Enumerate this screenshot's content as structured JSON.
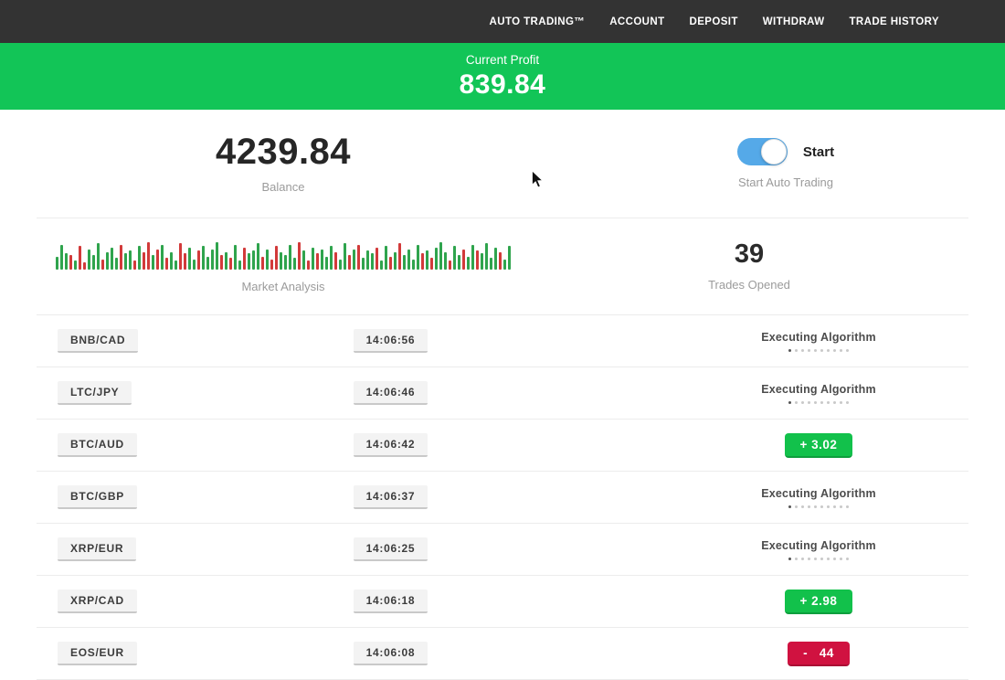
{
  "nav": {
    "items": [
      {
        "label": "AUTO TRADING™"
      },
      {
        "label": "ACCOUNT"
      },
      {
        "label": "DEPOSIT"
      },
      {
        "label": "WITHDRAW"
      },
      {
        "label": "TRADE HISTORY"
      }
    ]
  },
  "profit_banner": {
    "label": "Current Profit",
    "value": "839.84"
  },
  "stats": {
    "balance_value": "4239.84",
    "balance_label": "Balance",
    "toggle_label": "Start",
    "toggle_state": "on",
    "toggle_sublabel": "Start Auto Trading",
    "market_analysis_label": "Market Analysis",
    "trades_opened_value": "39",
    "trades_opened_label": "Trades Opened"
  },
  "colors": {
    "navbar_bg": "#333333",
    "banner_green": "#12c557",
    "badge_green": "#12c14b",
    "badge_red": "#d01240",
    "toggle_blue": "#55a9e8",
    "chart_green": "#2fa44d",
    "chart_red": "#d23a3a"
  },
  "ui": {
    "executing_dots_count": 10
  },
  "chart_data": {
    "type": "bar",
    "title": "Market Analysis",
    "xlabel": "",
    "ylabel": "",
    "legend": false,
    "axes_visible": false,
    "note": "decorative sparkline of market activity; values are relative bar heights 0-1 with color g=green up tick, r=red down tick",
    "bars": [
      [
        0.45,
        "g"
      ],
      [
        0.85,
        "g"
      ],
      [
        0.55,
        "g"
      ],
      [
        0.5,
        "r"
      ],
      [
        0.3,
        "g"
      ],
      [
        0.8,
        "r"
      ],
      [
        0.25,
        "r"
      ],
      [
        0.7,
        "g"
      ],
      [
        0.5,
        "g"
      ],
      [
        0.9,
        "g"
      ],
      [
        0.35,
        "r"
      ],
      [
        0.6,
        "g"
      ],
      [
        0.75,
        "g"
      ],
      [
        0.4,
        "g"
      ],
      [
        0.85,
        "r"
      ],
      [
        0.55,
        "g"
      ],
      [
        0.65,
        "g"
      ],
      [
        0.3,
        "r"
      ],
      [
        0.8,
        "g"
      ],
      [
        0.6,
        "r"
      ],
      [
        0.95,
        "r"
      ],
      [
        0.5,
        "g"
      ],
      [
        0.7,
        "r"
      ],
      [
        0.85,
        "g"
      ],
      [
        0.4,
        "r"
      ],
      [
        0.6,
        "g"
      ],
      [
        0.3,
        "g"
      ],
      [
        0.9,
        "r"
      ],
      [
        0.55,
        "r"
      ],
      [
        0.75,
        "g"
      ],
      [
        0.35,
        "g"
      ],
      [
        0.65,
        "r"
      ],
      [
        0.8,
        "g"
      ],
      [
        0.45,
        "g"
      ],
      [
        0.7,
        "g"
      ],
      [
        0.95,
        "g"
      ],
      [
        0.5,
        "r"
      ],
      [
        0.6,
        "g"
      ],
      [
        0.4,
        "r"
      ],
      [
        0.85,
        "g"
      ],
      [
        0.3,
        "g"
      ],
      [
        0.75,
        "r"
      ],
      [
        0.55,
        "g"
      ],
      [
        0.65,
        "g"
      ],
      [
        0.9,
        "g"
      ],
      [
        0.45,
        "r"
      ],
      [
        0.7,
        "g"
      ],
      [
        0.35,
        "r"
      ],
      [
        0.8,
        "r"
      ],
      [
        0.6,
        "g"
      ],
      [
        0.5,
        "g"
      ],
      [
        0.85,
        "g"
      ],
      [
        0.4,
        "g"
      ],
      [
        0.95,
        "r"
      ],
      [
        0.65,
        "g"
      ],
      [
        0.3,
        "r"
      ],
      [
        0.75,
        "g"
      ],
      [
        0.55,
        "r"
      ],
      [
        0.7,
        "g"
      ],
      [
        0.45,
        "g"
      ],
      [
        0.8,
        "g"
      ],
      [
        0.6,
        "r"
      ],
      [
        0.35,
        "g"
      ],
      [
        0.9,
        "g"
      ],
      [
        0.5,
        "r"
      ],
      [
        0.7,
        "g"
      ],
      [
        0.85,
        "r"
      ],
      [
        0.4,
        "g"
      ],
      [
        0.65,
        "g"
      ],
      [
        0.55,
        "g"
      ],
      [
        0.75,
        "r"
      ],
      [
        0.3,
        "g"
      ],
      [
        0.8,
        "g"
      ],
      [
        0.45,
        "r"
      ],
      [
        0.6,
        "g"
      ],
      [
        0.9,
        "r"
      ],
      [
        0.5,
        "g"
      ],
      [
        0.7,
        "g"
      ],
      [
        0.35,
        "g"
      ],
      [
        0.85,
        "g"
      ],
      [
        0.55,
        "r"
      ],
      [
        0.65,
        "g"
      ],
      [
        0.4,
        "r"
      ],
      [
        0.75,
        "g"
      ],
      [
        0.95,
        "g"
      ],
      [
        0.6,
        "g"
      ],
      [
        0.3,
        "r"
      ],
      [
        0.8,
        "g"
      ],
      [
        0.5,
        "g"
      ],
      [
        0.7,
        "r"
      ],
      [
        0.45,
        "g"
      ],
      [
        0.85,
        "g"
      ],
      [
        0.65,
        "r"
      ],
      [
        0.55,
        "g"
      ],
      [
        0.9,
        "g"
      ],
      [
        0.4,
        "g"
      ],
      [
        0.75,
        "g"
      ],
      [
        0.6,
        "r"
      ],
      [
        0.35,
        "g"
      ],
      [
        0.8,
        "g"
      ]
    ]
  },
  "trades": [
    {
      "pair": "BNB/CAD",
      "time": "14:06:56",
      "status": "executing",
      "status_label": "Executing Algorithm"
    },
    {
      "pair": "LTC/JPY",
      "time": "14:06:46",
      "status": "executing",
      "status_label": "Executing Algorithm"
    },
    {
      "pair": "BTC/AUD",
      "time": "14:06:42",
      "status": "win",
      "result": "+ 3.02"
    },
    {
      "pair": "BTC/GBP",
      "time": "14:06:37",
      "status": "executing",
      "status_label": "Executing Algorithm"
    },
    {
      "pair": "XRP/EUR",
      "time": "14:06:25",
      "status": "executing",
      "status_label": "Executing Algorithm"
    },
    {
      "pair": "XRP/CAD",
      "time": "14:06:18",
      "status": "win",
      "result": "+ 2.98"
    },
    {
      "pair": "EOS/EUR",
      "time": "14:06:08",
      "status": "loss",
      "result": "-   44"
    }
  ]
}
